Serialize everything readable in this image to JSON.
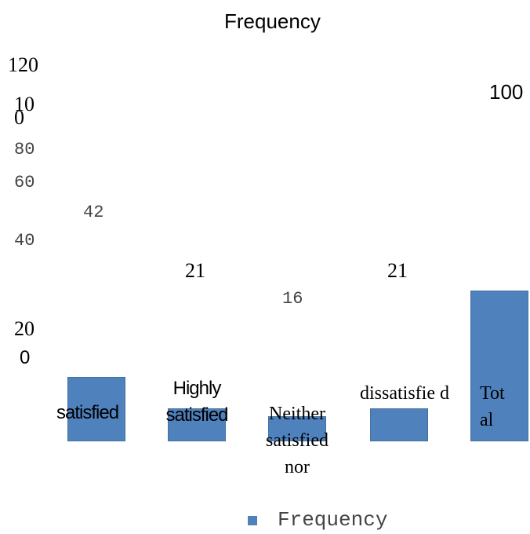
{
  "chart_data": {
    "type": "bar",
    "title": "Frequency",
    "categories": [
      "satisfied",
      "Highly satisfied",
      "Neither satisfied nor",
      "dissatisfied",
      "Total"
    ],
    "category_labels": [
      "satisfied",
      "Highly satisfied",
      "Neither satisfied nor",
      "dissatisfie d",
      "Tot al"
    ],
    "series": [
      {
        "name": "Frequency",
        "values": [
          42,
          21,
          16,
          21,
          100
        ],
        "color": "#4f81bd"
      }
    ],
    "data_labels": [
      "42",
      "21",
      "16",
      "21",
      "100"
    ],
    "y_ticks": [
      "120",
      "10 0",
      "80",
      "60",
      "40",
      "20",
      "0"
    ],
    "ylim": [
      0,
      120
    ],
    "legend": {
      "position": "bottom",
      "label": "Frequency"
    },
    "grid": false
  }
}
